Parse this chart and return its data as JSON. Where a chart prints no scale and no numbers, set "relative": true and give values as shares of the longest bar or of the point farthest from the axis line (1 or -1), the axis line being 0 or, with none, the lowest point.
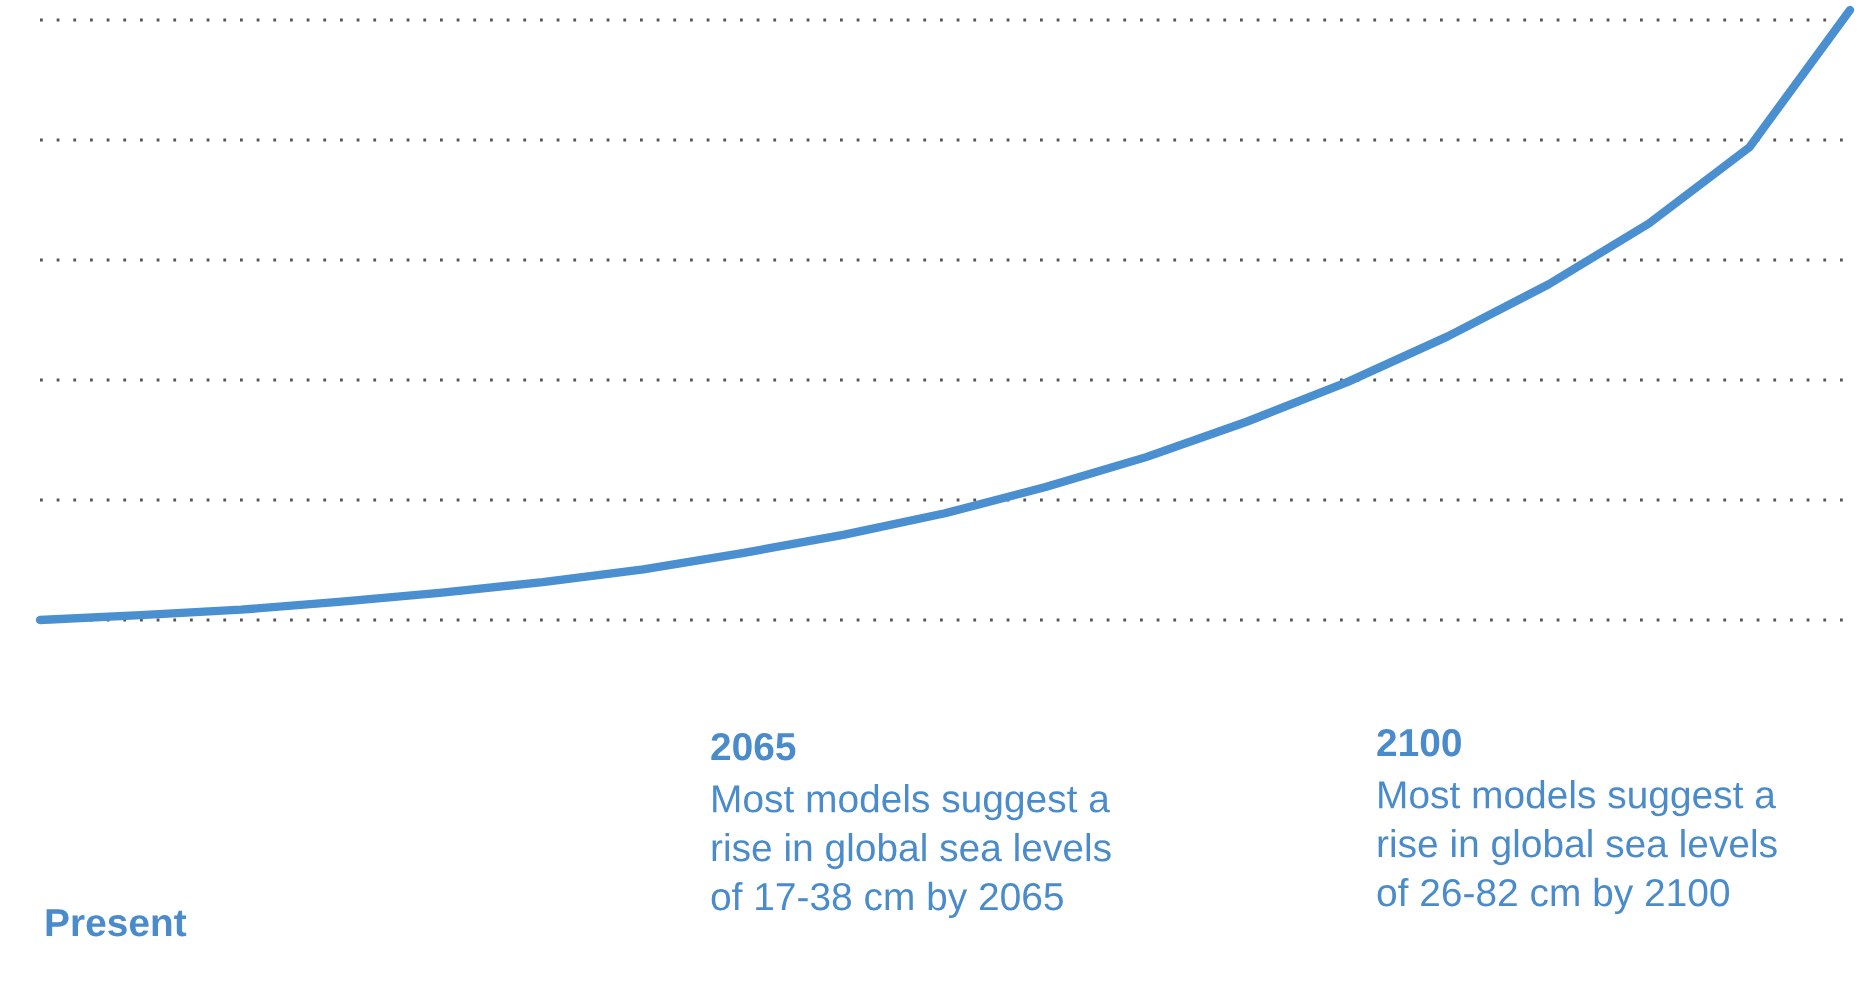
{
  "chart_data": {
    "type": "line",
    "relative": true,
    "grid": "y",
    "line_style": "solid",
    "marker": "none",
    "categories": [
      null,
      null,
      null,
      null,
      null,
      null,
      null,
      null,
      null,
      null,
      null,
      null,
      null,
      null,
      null,
      null,
      null,
      null,
      null
    ],
    "series": [
      {
        "color": "#4a8fd0",
        "values": [
          0,
          0.008,
          0.017,
          0.03,
          0.045,
          0.062,
          0.083,
          0.11,
          0.14,
          0.175,
          0.218,
          0.267,
          0.325,
          0.39,
          0.465,
          0.55,
          0.65,
          0.775,
          1.0
        ]
      }
    ],
    "annotations": [
      "Present",
      "2065",
      "Most models suggest a rise in global sea levels of 17-38 cm by 2065",
      "2100",
      "Most models suggest a rise in global sea levels of 26-82 cm by 2100"
    ]
  }
}
